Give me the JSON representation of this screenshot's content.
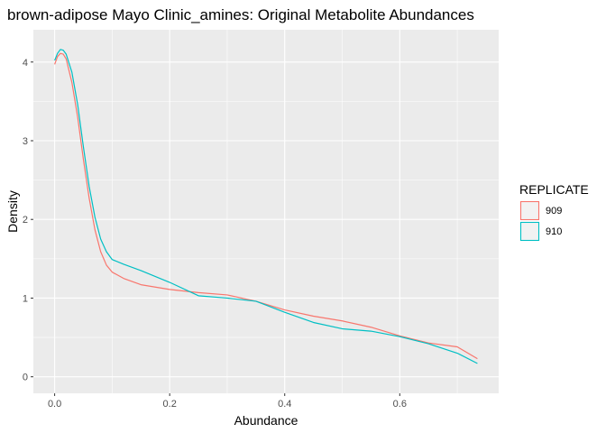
{
  "chart_data": {
    "type": "line",
    "title": "brown-adipose Mayo Clinic_amines: Original Metabolite Abundances",
    "xlabel": "Abundance",
    "ylabel": "Density",
    "xlim": [
      -0.037,
      0.772
    ],
    "ylim": [
      -0.21,
      4.41
    ],
    "x_ticks": [
      0.0,
      0.2,
      0.4,
      0.6
    ],
    "x_tick_labels": [
      "0.0",
      "0.2",
      "0.4",
      "0.6"
    ],
    "y_ticks": [
      0,
      1,
      2,
      3,
      4
    ],
    "y_tick_labels": [
      "0",
      "1",
      "2",
      "3",
      "4"
    ],
    "grid": true,
    "legend": {
      "title": "REPLICATE",
      "position": "right"
    },
    "series": [
      {
        "name": "909",
        "color": "#F8766D",
        "x": [
          0.0,
          0.005,
          0.01,
          0.015,
          0.02,
          0.03,
          0.04,
          0.05,
          0.06,
          0.07,
          0.08,
          0.09,
          0.1,
          0.12,
          0.15,
          0.2,
          0.25,
          0.3,
          0.35,
          0.4,
          0.45,
          0.5,
          0.55,
          0.6,
          0.65,
          0.7,
          0.735
        ],
        "y": [
          3.97,
          4.07,
          4.11,
          4.1,
          4.04,
          3.74,
          3.3,
          2.76,
          2.27,
          1.87,
          1.59,
          1.42,
          1.33,
          1.25,
          1.17,
          1.11,
          1.07,
          1.04,
          0.96,
          0.85,
          0.77,
          0.71,
          0.63,
          0.52,
          0.43,
          0.38,
          0.23
        ]
      },
      {
        "name": "910",
        "color": "#00BFC4",
        "x": [
          0.0,
          0.005,
          0.01,
          0.015,
          0.02,
          0.03,
          0.04,
          0.05,
          0.06,
          0.07,
          0.08,
          0.09,
          0.1,
          0.12,
          0.15,
          0.2,
          0.25,
          0.3,
          0.35,
          0.4,
          0.45,
          0.5,
          0.55,
          0.6,
          0.65,
          0.7,
          0.735
        ],
        "y": [
          4.02,
          4.11,
          4.16,
          4.15,
          4.1,
          3.87,
          3.46,
          2.92,
          2.42,
          2.03,
          1.75,
          1.59,
          1.49,
          1.43,
          1.35,
          1.2,
          1.03,
          1.0,
          0.96,
          0.82,
          0.69,
          0.61,
          0.58,
          0.51,
          0.42,
          0.3,
          0.17
        ]
      }
    ]
  }
}
